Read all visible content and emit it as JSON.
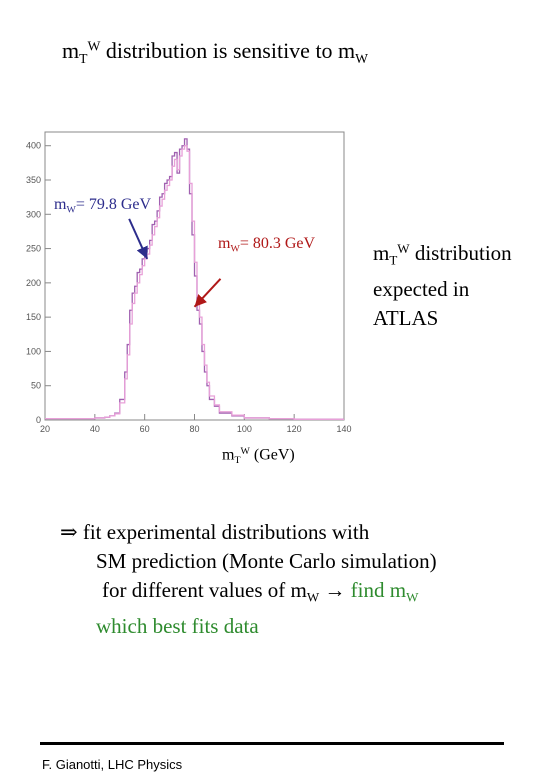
{
  "title": {
    "main": "m",
    "sub": "T",
    "sup": "W",
    "mid": " distribution is sensitive to m",
    "sub2": "W"
  },
  "xlabel": {
    "main": "m",
    "sub": "T",
    "sup": "W",
    "rest": " (GeV)"
  },
  "annotations": {
    "a1": {
      "m": "m",
      "sub": "W",
      "rest": "= 79.8 GeV",
      "color": "#2d2d8c"
    },
    "a2": {
      "m": "m",
      "sub": "W",
      "rest": "= 80.3 GeV",
      "color": "#b01818"
    }
  },
  "side_text": {
    "m": "m",
    "sub": "T",
    "sup": "W",
    "l1rest": " distribution",
    "l2": "expected in",
    "l3": "ATLAS"
  },
  "bullets": {
    "symbol": "⇒",
    "l1": " fit experimental distributions with",
    "l2": "SM prediction (Monte Carlo simulation)",
    "l3a": "for different values of m",
    "l3sub": "W",
    "arrow": "→",
    "l3find": " find m",
    "l3findsub": "W",
    "l4": "which best fits data"
  },
  "footer": "F. Gianotti, LHC Physics",
  "chart_data": {
    "type": "line",
    "xlim": [
      20,
      140
    ],
    "ylim": [
      0,
      420
    ],
    "xticks": [
      20,
      40,
      60,
      80,
      100,
      120,
      140
    ],
    "yticks": [
      0,
      50,
      100,
      150,
      200,
      250,
      300,
      350,
      400
    ],
    "series": [
      {
        "color": "#a060b0",
        "x": [
          20,
          30,
          40,
          44,
          46,
          48,
          50,
          52,
          53,
          54,
          55,
          56,
          57,
          58,
          59,
          60,
          61,
          62,
          63,
          64,
          65,
          66,
          67,
          68,
          69,
          70,
          71,
          72,
          73,
          74,
          75,
          76,
          77,
          78,
          79,
          80,
          81,
          82,
          83,
          84,
          85,
          86,
          88,
          90,
          95,
          100,
          110,
          120,
          140
        ],
        "y": [
          2,
          2,
          3,
          4,
          6,
          10,
          30,
          70,
          110,
          160,
          185,
          195,
          215,
          220,
          235,
          245,
          250,
          262,
          285,
          290,
          305,
          325,
          330,
          345,
          350,
          355,
          385,
          390,
          360,
          395,
          400,
          410,
          395,
          330,
          270,
          210,
          160,
          140,
          100,
          70,
          50,
          30,
          20,
          10,
          6,
          3,
          2,
          1,
          1
        ]
      },
      {
        "color": "#e8a0d8",
        "x": [
          20,
          30,
          40,
          44,
          46,
          48,
          50,
          52,
          53,
          54,
          55,
          56,
          57,
          58,
          59,
          60,
          61,
          62,
          63,
          64,
          65,
          66,
          67,
          68,
          69,
          70,
          71,
          72,
          73,
          74,
          75,
          76,
          77,
          78,
          79,
          80,
          81,
          82,
          83,
          84,
          85,
          86,
          88,
          90,
          95,
          100,
          110,
          120,
          140
        ],
        "y": [
          2,
          2,
          3,
          4,
          6,
          9,
          25,
          60,
          95,
          140,
          170,
          185,
          200,
          212,
          225,
          235,
          242,
          255,
          270,
          282,
          295,
          312,
          322,
          335,
          342,
          350,
          370,
          380,
          365,
          385,
          395,
          400,
          392,
          345,
          290,
          230,
          180,
          150,
          110,
          80,
          55,
          35,
          22,
          12,
          7,
          3,
          2,
          1,
          1
        ]
      }
    ],
    "annotations": [
      {
        "text": "mW= 79.8 GeV",
        "arrow_x": 61,
        "arrow_y": 235,
        "color": "#2d2d8c"
      },
      {
        "text": "mW= 80.3 GeV",
        "arrow_x": 80,
        "arrow_y": 165,
        "color": "#b01818"
      }
    ]
  }
}
